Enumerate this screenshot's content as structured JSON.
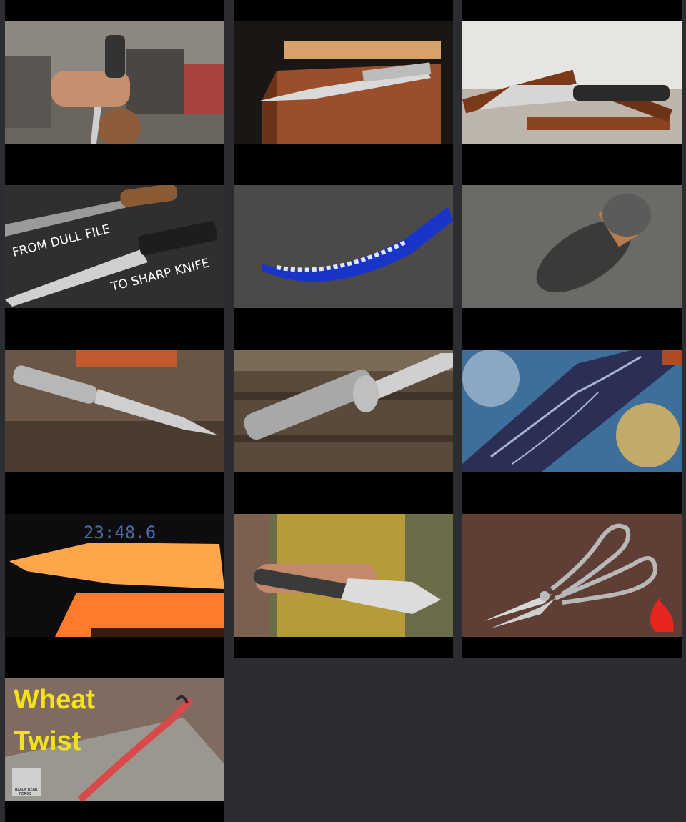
{
  "videos": [
    {
      "id": "v1",
      "thumb_text": []
    },
    {
      "id": "v2",
      "thumb_text": []
    },
    {
      "id": "v3",
      "thumb_text": []
    },
    {
      "id": "v4",
      "thumb_text": [
        "FROM DULL FILE",
        "TO SHARP KNIFE"
      ]
    },
    {
      "id": "v5",
      "thumb_text": []
    },
    {
      "id": "v6",
      "thumb_text": []
    },
    {
      "id": "v7",
      "thumb_text": []
    },
    {
      "id": "v8",
      "thumb_text": []
    },
    {
      "id": "v9",
      "thumb_text": []
    },
    {
      "id": "v10",
      "thumb_text": [
        "23:48.6"
      ]
    },
    {
      "id": "v11",
      "thumb_text": []
    },
    {
      "id": "v12",
      "thumb_text": []
    },
    {
      "id": "v13",
      "thumb_text": [
        "Wheat",
        "Twist",
        "BLACK BEAR",
        "FORGE"
      ]
    }
  ],
  "colors": {
    "page_bg": "#2b2d31",
    "card_bg": "#000000",
    "wheat_text": "#f4e21a",
    "flame_red": "#e8261d"
  }
}
